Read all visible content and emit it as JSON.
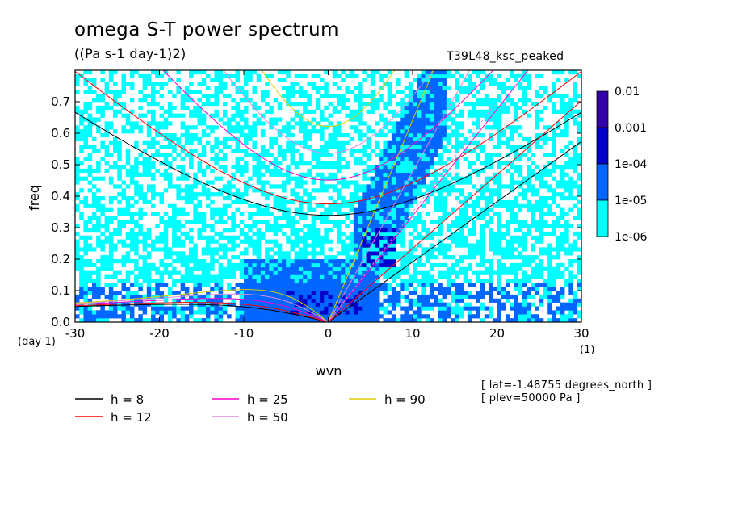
{
  "title": "omega S-T power spectrum",
  "units": "((Pa s-1 day-1)2)",
  "run_name": "T39L48_ksc_peaked",
  "meta_lines": [
    "[ lat=-1.48755 degrees_north ]",
    "[ plev=50000 Pa ]"
  ],
  "chart_data": {
    "type": "heatmap",
    "title": "omega S-T power spectrum",
    "xlabel": "wvn",
    "ylabel": "freq",
    "x_unit_label": "(1)",
    "y_unit_label": "(day-1)",
    "xlim": [
      -30,
      30
    ],
    "ylim": [
      0,
      0.8
    ],
    "x_ticks": [
      -30,
      -20,
      -10,
      0,
      10,
      20,
      30
    ],
    "x_tick_labels": [
      "-30",
      "-20",
      "-10",
      "0",
      "10",
      "20",
      "30"
    ],
    "y_ticks": [
      0,
      0.1,
      0.2,
      0.3,
      0.4,
      0.5,
      0.6,
      0.7
    ],
    "y_tick_labels": [
      "0.0",
      "0.1",
      "0.2",
      "0.3",
      "0.4",
      "0.5",
      "0.6",
      "0.7"
    ],
    "colorbar": {
      "levels": [
        "1e-06",
        "1e-05",
        "1e-04",
        "0.001",
        "0.01"
      ],
      "colors": [
        "#00ffff",
        "#0066ff",
        "#0000cc",
        "#3300aa"
      ]
    },
    "color_zones": [
      {
        "name": "background",
        "level": 0
      },
      {
        "name": "equatorial-band",
        "x": [
          -10,
          6
        ],
        "y": [
          0,
          0.2
        ],
        "level": 2
      },
      {
        "name": "kelvin-ridge",
        "x": [
          3,
          14
        ],
        "y": [
          0.15,
          0.8
        ],
        "level": 2
      },
      {
        "name": "kelvin-core",
        "x": [
          4,
          8
        ],
        "y": [
          0.18,
          0.3
        ],
        "level": 3
      },
      {
        "name": "lowfreq-core",
        "x": [
          -5,
          4
        ],
        "y": [
          0.02,
          0.1
        ],
        "level": 3
      }
    ],
    "dispersion_curves": {
      "equivalent_depths_m": [
        8,
        12,
        25,
        50,
        90
      ],
      "colors": [
        "#000000",
        "#ff0000",
        "#ff00cc",
        "#dd88dd",
        "#ddcc00"
      ],
      "kelvin_dash_extent": {
        "x": [
          0,
          20
        ],
        "y": [
          0,
          0.7
        ]
      }
    },
    "legend": [
      {
        "label": "h =  8",
        "color": "#000000"
      },
      {
        "label": "h = 12",
        "color": "#ff0000"
      },
      {
        "label": "h = 25",
        "color": "#ff00cc"
      },
      {
        "label": "h = 50",
        "color": "#dd88dd"
      },
      {
        "label": "h = 90",
        "color": "#ddcc00"
      }
    ]
  }
}
